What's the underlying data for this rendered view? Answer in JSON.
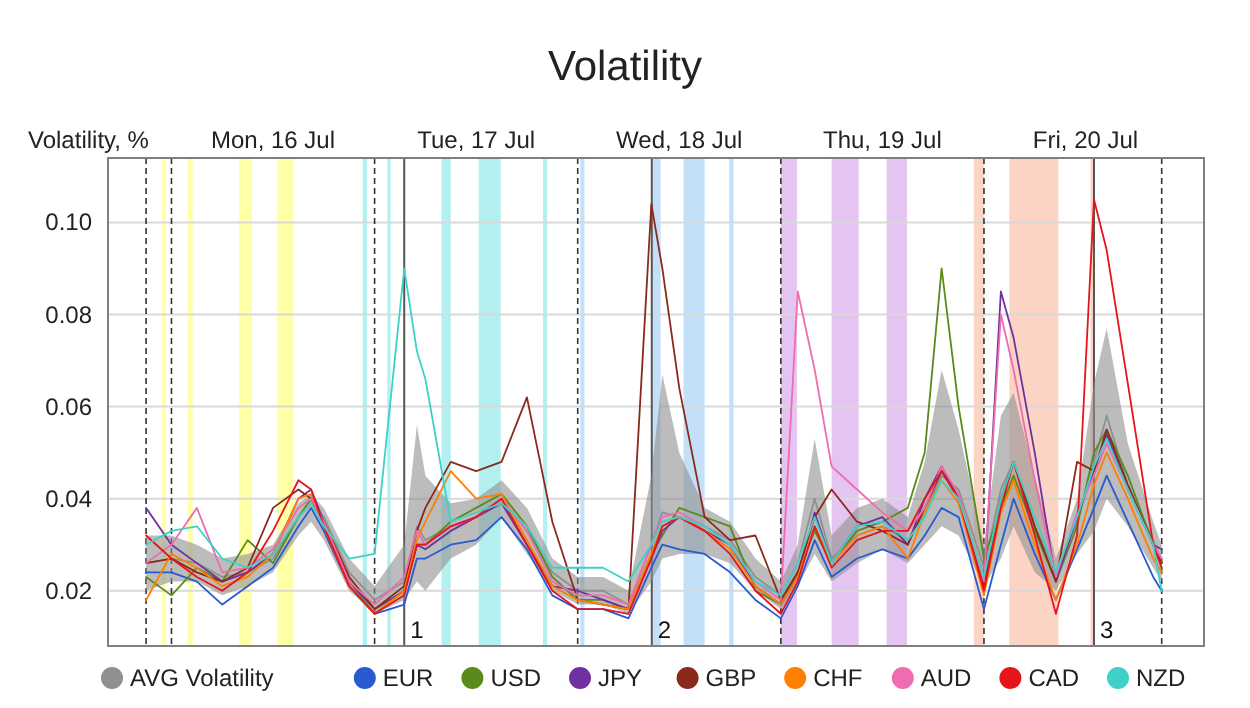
{
  "chart_data": {
    "type": "line",
    "title": "Volatility",
    "ylabel": "Volatility, %",
    "x": [
      "--07-15T21:00",
      "--07-16T00:00",
      "--07-16T03:00",
      "--07-16T06:00",
      "--07-16T09:00",
      "--07-16T12:00",
      "--07-16T15:00",
      "--07-16T16:30",
      "--07-16T18:00",
      "--07-16T21:00",
      "--07-17T00:00",
      "--07-17T03:30",
      "--07-17T05:00",
      "--07-17T06:00",
      "--07-17T09:00",
      "--07-17T12:00",
      "--07-17T15:00",
      "--07-17T18:00",
      "--07-17T21:00",
      "--07-18T00:00",
      "--07-18T03:00",
      "--07-18T06:00",
      "--07-18T08:42",
      "--07-18T10:00",
      "--07-18T12:00",
      "--07-18T15:00",
      "--07-18T18:00",
      "--07-18T21:00",
      "--07-19T00:00",
      "--07-19T02:00",
      "--07-19T04:00",
      "--07-19T06:00",
      "--07-19T09:00",
      "--07-19T12:00",
      "--07-19T15:00",
      "--07-19T17:00",
      "--07-19T19:00",
      "--07-19T21:00",
      "--07-20T00:00",
      "--07-20T02:00",
      "--07-20T03:30",
      "--07-20T06:00",
      "--07-20T08:30",
      "--07-20T11:00",
      "--07-20T13:00",
      "--07-20T14:30",
      "--07-20T17:00",
      "--07-20T20:00",
      "--07-20T21:00"
    ],
    "xlim": [
      "--07-15T16:30",
      "--07-21T02:00"
    ],
    "xticks": [
      {
        "value": "--07-16T12:00",
        "label": "Mon, 16 Jul"
      },
      {
        "value": "--07-17T12:00",
        "label": "Tue, 17 Jul"
      },
      {
        "value": "--07-18T12:00",
        "label": "Wed, 18 Jul"
      },
      {
        "value": "--07-19T12:00",
        "label": "Thu, 19 Jul"
      },
      {
        "value": "--07-20T12:00",
        "label": "Fri, 20 Jul"
      }
    ],
    "ylim": [
      0.008,
      0.114
    ],
    "yticks": [
      0.02,
      0.04,
      0.06,
      0.08,
      {
        "value": 0.1,
        "label": "0.10"
      }
    ],
    "grid": "y",
    "legend": "bottom",
    "series": [
      {
        "name": "EUR",
        "color": "#2a5ad0",
        "values": [
          0.024,
          0.024,
          0.022,
          0.017,
          0.021,
          0.025,
          0.034,
          0.038,
          0.033,
          0.021,
          0.015,
          0.017,
          0.027,
          0.027,
          0.03,
          0.031,
          0.036,
          0.029,
          0.019,
          0.016,
          0.016,
          0.014,
          0.025,
          0.03,
          0.029,
          0.028,
          0.024,
          0.018,
          0.014,
          0.021,
          0.031,
          0.023,
          0.027,
          0.029,
          0.027,
          0.032,
          0.038,
          0.036,
          0.016,
          0.03,
          0.04,
          0.028,
          0.018,
          0.029,
          0.038,
          0.045,
          0.035,
          0.023,
          0.02
        ]
      },
      {
        "name": "USD",
        "color": "#5a8a1a",
        "values": [
          0.023,
          0.019,
          0.025,
          0.022,
          0.031,
          0.026,
          0.036,
          0.04,
          0.035,
          0.022,
          0.015,
          0.02,
          0.03,
          0.03,
          0.035,
          0.038,
          0.041,
          0.034,
          0.023,
          0.018,
          0.018,
          0.016,
          0.028,
          0.032,
          0.038,
          0.036,
          0.034,
          0.02,
          0.017,
          0.024,
          0.033,
          0.026,
          0.033,
          0.035,
          0.038,
          0.05,
          0.09,
          0.06,
          0.027,
          0.038,
          0.045,
          0.033,
          0.022,
          0.034,
          0.05,
          0.055,
          0.045,
          0.03,
          0.025
        ]
      },
      {
        "name": "JPY",
        "color": "#7030a0",
        "values": [
          0.038,
          0.03,
          0.026,
          0.022,
          0.024,
          0.028,
          0.04,
          0.042,
          0.035,
          0.022,
          0.016,
          0.02,
          0.03,
          0.029,
          0.033,
          0.036,
          0.039,
          0.03,
          0.021,
          0.02,
          0.018,
          0.016,
          0.027,
          0.033,
          0.036,
          0.033,
          0.03,
          0.021,
          0.017,
          0.023,
          0.037,
          0.026,
          0.034,
          0.036,
          0.03,
          0.04,
          0.047,
          0.04,
          0.02,
          0.085,
          0.075,
          0.05,
          0.022,
          0.036,
          0.046,
          0.054,
          0.042,
          0.03,
          0.029
        ]
      },
      {
        "name": "GBP",
        "color": "#8b2a1a",
        "values": [
          0.026,
          0.027,
          0.024,
          0.022,
          0.025,
          0.038,
          0.042,
          0.04,
          0.035,
          0.023,
          0.016,
          0.021,
          0.033,
          0.038,
          0.048,
          0.046,
          0.048,
          0.062,
          0.035,
          0.018,
          0.017,
          0.016,
          0.104,
          0.09,
          0.064,
          0.036,
          0.031,
          0.032,
          0.018,
          0.024,
          0.036,
          0.042,
          0.035,
          0.033,
          0.03,
          0.038,
          0.046,
          0.04,
          0.021,
          0.04,
          0.048,
          0.034,
          0.022,
          0.048,
          0.046,
          0.055,
          0.043,
          0.03,
          0.026
        ]
      },
      {
        "name": "CHF",
        "color": "#ff8000",
        "values": [
          0.018,
          0.028,
          0.025,
          0.021,
          0.023,
          0.028,
          0.04,
          0.041,
          0.034,
          0.021,
          0.015,
          0.02,
          0.031,
          0.035,
          0.046,
          0.04,
          0.041,
          0.031,
          0.021,
          0.018,
          0.017,
          0.016,
          0.028,
          0.034,
          0.036,
          0.033,
          0.029,
          0.021,
          0.017,
          0.023,
          0.034,
          0.026,
          0.032,
          0.034,
          0.027,
          0.037,
          0.044,
          0.039,
          0.019,
          0.037,
          0.044,
          0.03,
          0.018,
          0.03,
          0.043,
          0.05,
          0.04,
          0.027,
          0.024
        ]
      },
      {
        "name": "AUD",
        "color": "#f06cb0",
        "values": [
          0.026,
          0.03,
          0.038,
          0.024,
          0.025,
          0.029,
          0.038,
          0.04,
          0.035,
          0.022,
          0.017,
          0.023,
          0.033,
          0.03,
          0.034,
          0.036,
          0.04,
          0.033,
          0.022,
          0.019,
          0.019,
          0.017,
          0.03,
          0.036,
          0.037,
          0.034,
          0.03,
          0.022,
          0.018,
          0.085,
          0.068,
          0.047,
          0.042,
          0.037,
          0.033,
          0.038,
          0.047,
          0.041,
          0.022,
          0.08,
          0.068,
          0.044,
          0.023,
          0.037,
          0.045,
          0.052,
          0.042,
          0.03,
          0.027
        ]
      },
      {
        "name": "CAD",
        "color": "#e8141c",
        "values": [
          0.032,
          0.027,
          0.023,
          0.02,
          0.024,
          0.033,
          0.044,
          0.042,
          0.034,
          0.021,
          0.015,
          0.019,
          0.03,
          0.03,
          0.034,
          0.036,
          0.04,
          0.03,
          0.02,
          0.016,
          0.016,
          0.015,
          0.027,
          0.034,
          0.036,
          0.033,
          0.028,
          0.02,
          0.015,
          0.022,
          0.034,
          0.025,
          0.031,
          0.033,
          0.033,
          0.04,
          0.046,
          0.04,
          0.02,
          0.038,
          0.048,
          0.032,
          0.015,
          0.032,
          0.105,
          0.094,
          0.065,
          0.03,
          0.025
        ]
      },
      {
        "name": "NZD",
        "color": "#3fd0c8",
        "values": [
          0.03,
          0.033,
          0.034,
          0.027,
          0.025,
          0.028,
          0.036,
          0.039,
          0.034,
          0.027,
          0.028,
          0.09,
          0.072,
          0.066,
          0.035,
          0.037,
          0.039,
          0.034,
          0.025,
          0.025,
          0.025,
          0.022,
          0.03,
          0.035,
          0.036,
          0.034,
          0.03,
          0.022,
          0.019,
          0.026,
          0.036,
          0.026,
          0.034,
          0.035,
          0.031,
          0.036,
          0.044,
          0.04,
          0.023,
          0.04,
          0.048,
          0.036,
          0.024,
          0.036,
          0.047,
          0.053,
          0.042,
          0.03,
          0.02
        ]
      },
      {
        "name": "AVG Volatility",
        "color": "#909090",
        "values": [
          0.026,
          0.027,
          0.026,
          0.023,
          0.024,
          0.027,
          0.036,
          0.039,
          0.036,
          0.024,
          0.018,
          0.022,
          0.034,
          0.031,
          0.034,
          0.036,
          0.04,
          0.033,
          0.024,
          0.02,
          0.02,
          0.017,
          0.03,
          0.037,
          0.036,
          0.034,
          0.031,
          0.023,
          0.019,
          0.026,
          0.04,
          0.027,
          0.032,
          0.034,
          0.031,
          0.037,
          0.045,
          0.042,
          0.025,
          0.042,
          0.048,
          0.034,
          0.024,
          0.035,
          0.048,
          0.058,
          0.043,
          0.031,
          0.026
        ],
        "lower": [
          0.02,
          0.022,
          0.022,
          0.019,
          0.021,
          0.024,
          0.032,
          0.035,
          0.031,
          0.02,
          0.015,
          0.018,
          0.022,
          0.02,
          0.027,
          0.03,
          0.036,
          0.028,
          0.02,
          0.017,
          0.017,
          0.015,
          0.022,
          0.027,
          0.028,
          0.028,
          0.026,
          0.02,
          0.016,
          0.021,
          0.028,
          0.022,
          0.026,
          0.029,
          0.026,
          0.03,
          0.034,
          0.032,
          0.021,
          0.027,
          0.034,
          0.024,
          0.02,
          0.028,
          0.033,
          0.04,
          0.034,
          0.025,
          0.022
        ],
        "upper": [
          0.032,
          0.032,
          0.03,
          0.027,
          0.028,
          0.03,
          0.039,
          0.041,
          0.038,
          0.027,
          0.021,
          0.03,
          0.056,
          0.045,
          0.039,
          0.04,
          0.044,
          0.038,
          0.027,
          0.023,
          0.023,
          0.02,
          0.045,
          0.067,
          0.05,
          0.038,
          0.035,
          0.027,
          0.022,
          0.03,
          0.053,
          0.032,
          0.038,
          0.04,
          0.036,
          0.048,
          0.068,
          0.055,
          0.03,
          0.058,
          0.063,
          0.045,
          0.027,
          0.04,
          0.065,
          0.077,
          0.052,
          0.035,
          0.03
        ]
      }
    ],
    "ref_lines": [
      {
        "axis": "x",
        "value": "--07-15T21:00",
        "line_style": "dashed"
      },
      {
        "axis": "x",
        "value": "--07-16T00:00",
        "line_style": "dashed"
      },
      {
        "axis": "x",
        "value": "--07-17T00:00",
        "line_style": "dashed"
      },
      {
        "axis": "x",
        "value": "--07-18T00:00",
        "line_style": "dashed"
      },
      {
        "axis": "x",
        "value": "--07-19T00:00",
        "line_style": "dashed"
      },
      {
        "axis": "x",
        "value": "--07-20T00:00",
        "line_style": "dashed"
      },
      {
        "axis": "x",
        "value": "--07-20T21:00",
        "line_style": "dashed"
      },
      {
        "axis": "x",
        "value": "--07-17T03:30",
        "line_style": "solid"
      },
      {
        "axis": "x",
        "value": "--07-18T08:45",
        "line_style": "solid"
      },
      {
        "axis": "x",
        "value": "--07-20T13:00",
        "line_style": "solid"
      }
    ],
    "annotations": [
      {
        "text": "1",
        "x": "--07-17T03:30"
      },
      {
        "text": "2",
        "x": "--07-18T08:45"
      },
      {
        "text": "3",
        "x": "--07-20T13:00"
      }
    ],
    "bands": [
      {
        "axis": "x",
        "from": "--07-15T22:54",
        "to": "--07-15T23:18",
        "color": "#ffffa6"
      },
      {
        "axis": "x",
        "from": "--07-16T01:54",
        "to": "--07-16T02:30",
        "color": "#ffffa6"
      },
      {
        "axis": "x",
        "from": "--07-16T08:00",
        "to": "--07-16T09:30",
        "color": "#ffffa6"
      },
      {
        "axis": "x",
        "from": "--07-16T12:30",
        "to": "--07-16T14:24",
        "color": "#ffffa6"
      },
      {
        "axis": "x",
        "from": "--07-16T22:36",
        "to": "--07-16T23:06",
        "color": "#b4f0f0"
      },
      {
        "axis": "x",
        "from": "--07-17T01:30",
        "to": "--07-17T01:54",
        "color": "#b4f0f0"
      },
      {
        "axis": "x",
        "from": "--07-17T07:54",
        "to": "--07-17T09:00",
        "color": "#b4f0f0"
      },
      {
        "axis": "x",
        "from": "--07-17T12:18",
        "to": "--07-17T14:54",
        "color": "#b4f0f0"
      },
      {
        "axis": "x",
        "from": "--07-17T19:54",
        "to": "--07-17T20:24",
        "color": "#b4f0f0"
      },
      {
        "axis": "x",
        "from": "--07-18T00:18",
        "to": "--07-18T00:48",
        "color": "#c4e0f8"
      },
      {
        "axis": "x",
        "from": "--07-18T08:48",
        "to": "--07-18T09:48",
        "color": "#c4e0f8"
      },
      {
        "axis": "x",
        "from": "--07-18T12:30",
        "to": "--07-18T15:00",
        "color": "#c4e0f8"
      },
      {
        "axis": "x",
        "from": "--07-18T17:54",
        "to": "--07-18T18:24",
        "color": "#c4e0f8"
      },
      {
        "axis": "x",
        "from": "--07-19T00:00",
        "to": "--07-19T01:54",
        "color": "#e4c4f0"
      },
      {
        "axis": "x",
        "from": "--07-19T06:00",
        "to": "--07-19T09:12",
        "color": "#e4c4f0"
      },
      {
        "axis": "x",
        "from": "--07-19T12:30",
        "to": "--07-19T14:54",
        "color": "#e4c4f0"
      },
      {
        "axis": "x",
        "from": "--07-19T22:48",
        "to": "--07-20T00:00",
        "color": "#fcd4c4"
      },
      {
        "axis": "x",
        "from": "--07-20T03:00",
        "to": "--07-20T08:48",
        "color": "#fcd4c4"
      },
      {
        "axis": "x",
        "from": "--07-20T12:36",
        "to": "--07-20T13:00",
        "color": "#fcd4c4"
      }
    ]
  }
}
